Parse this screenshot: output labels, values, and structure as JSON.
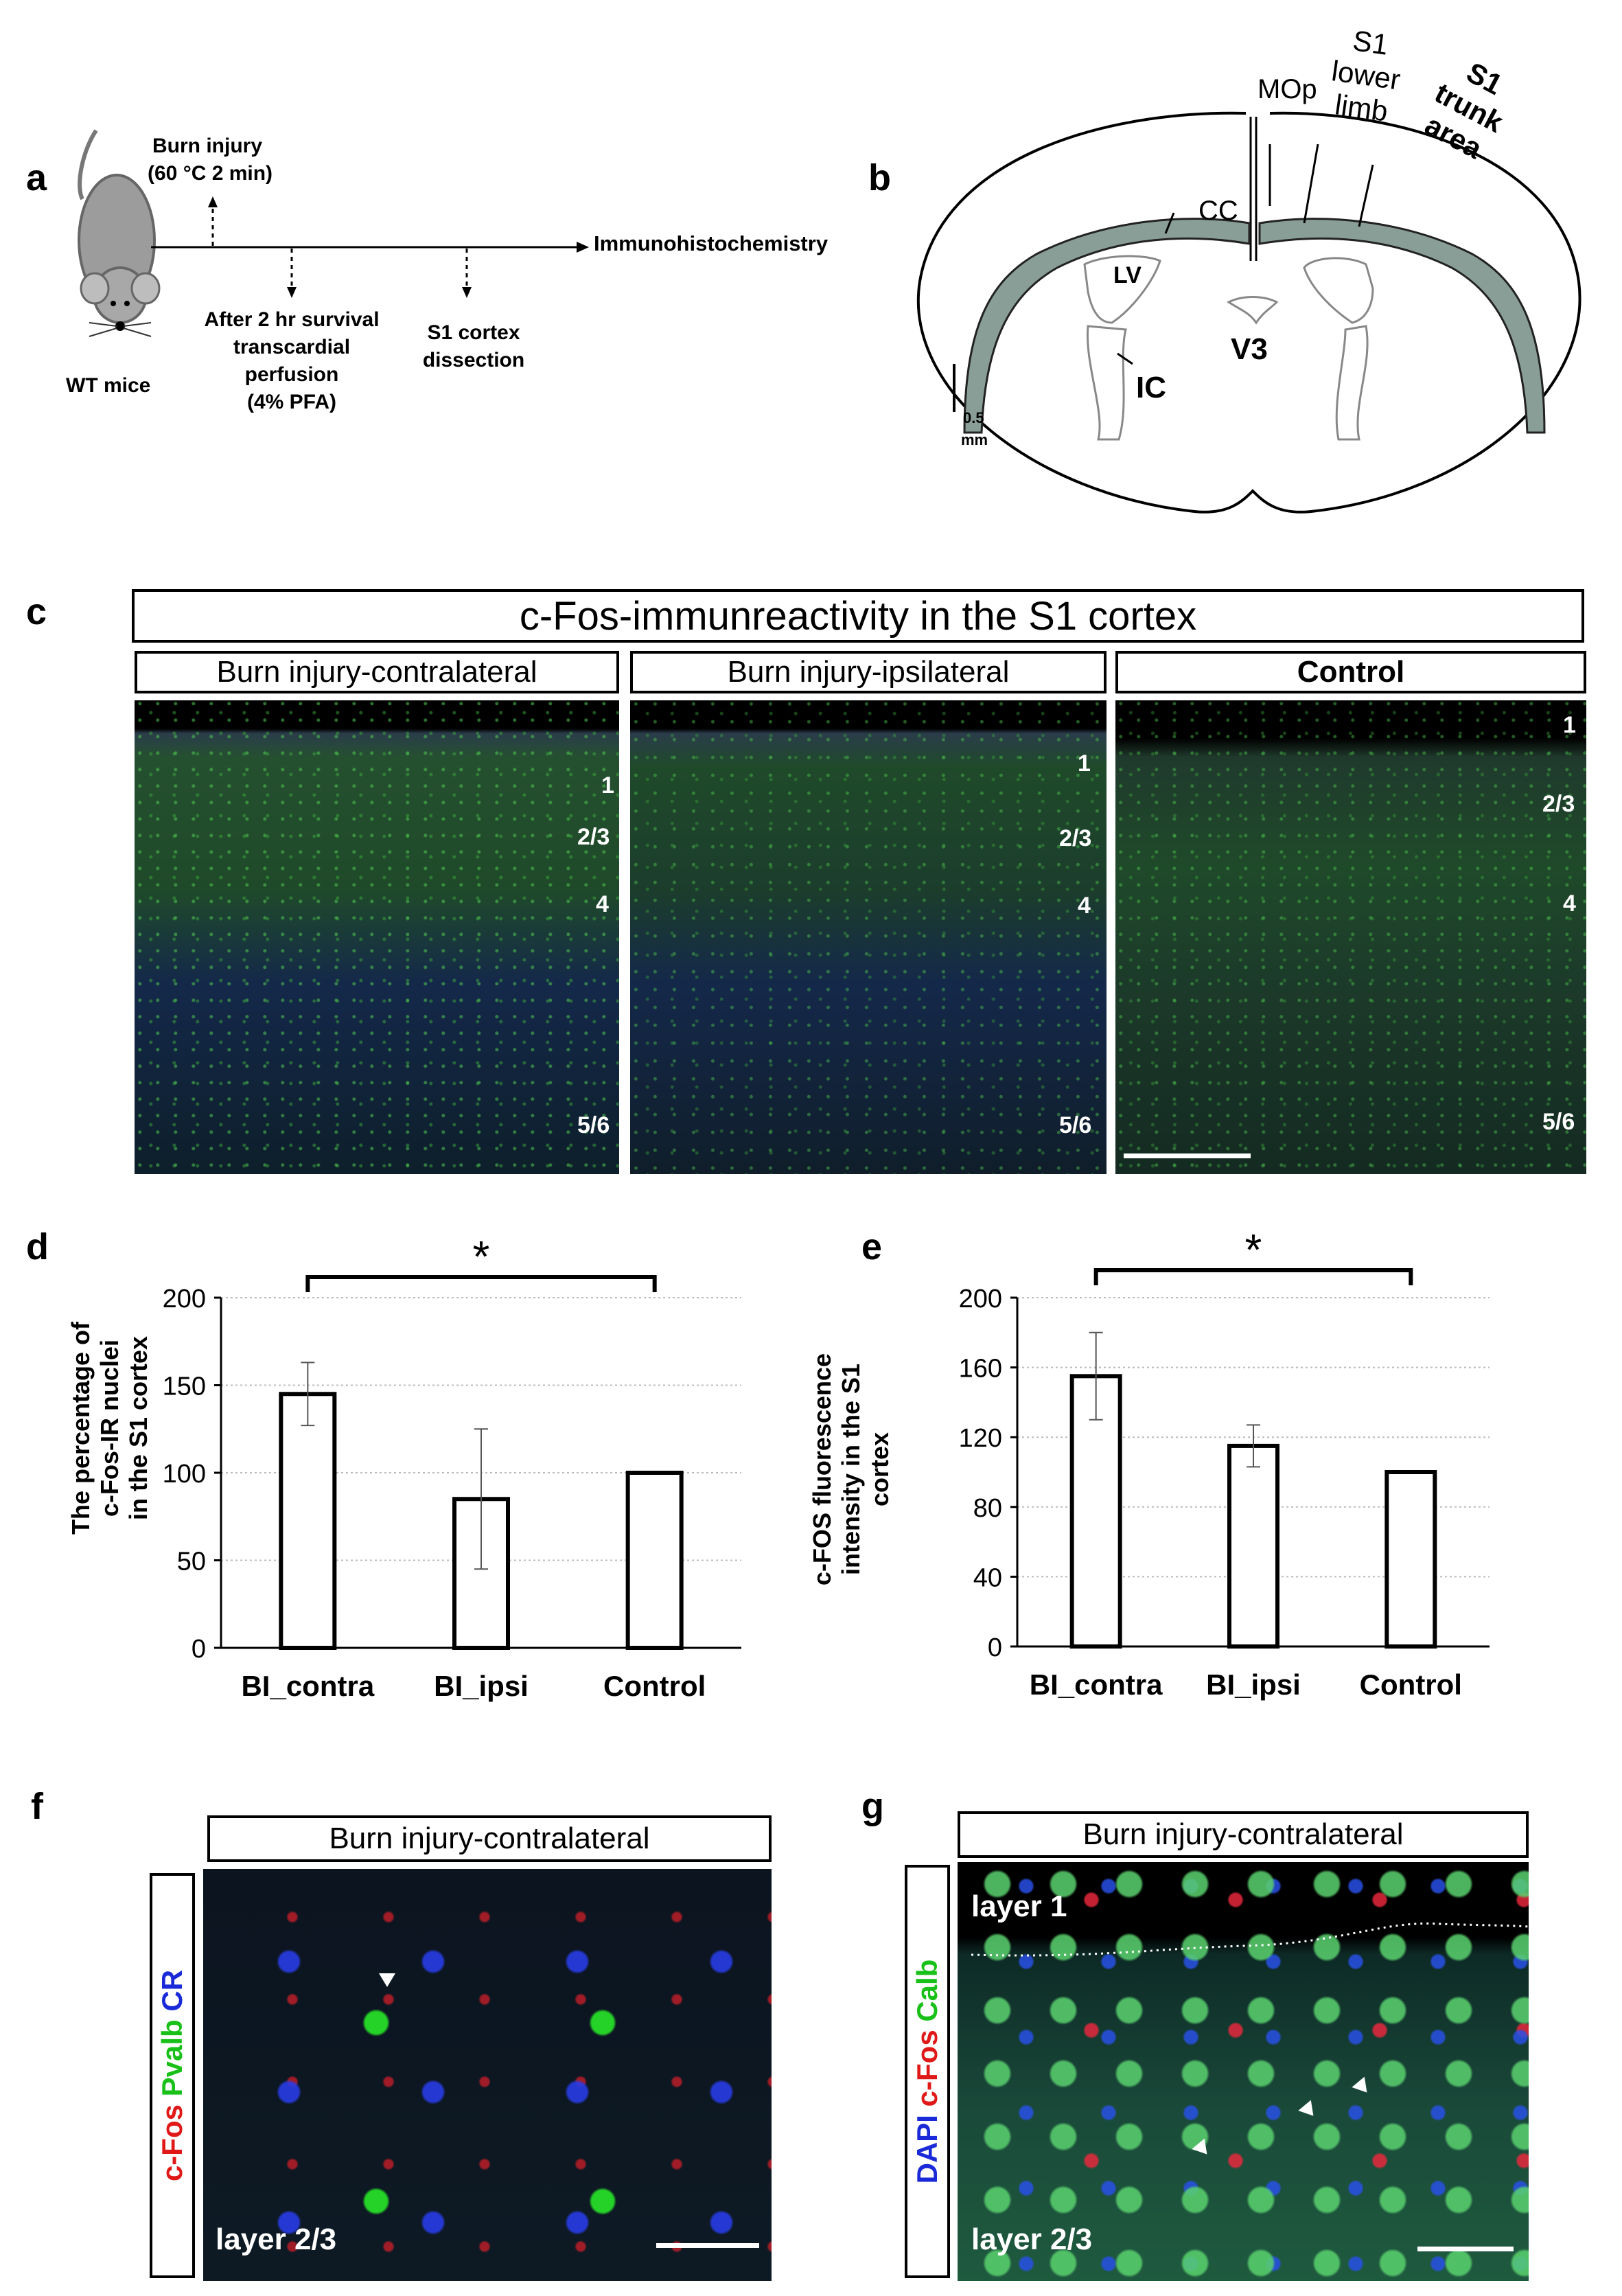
{
  "panels": {
    "a": {
      "label": "a",
      "burn_injury": "Burn injury",
      "burn_params": "(60 °C 2 min)",
      "immuno": "Immunohistochemistry",
      "survival_line1": "After 2 hr survival",
      "survival_line2": "transcardial",
      "survival_line3": "perfusion",
      "survival_line4": "(4% PFA)",
      "dissection_line1": "S1 cortex",
      "dissection_line2": "dissection",
      "mouse_label": "WT mice"
    },
    "b": {
      "label": "b",
      "mop": "MOp",
      "s1_lower_1": "S1",
      "s1_lower_2": "lower",
      "s1_lower_3": "limb",
      "s1_trunk_1": "S1",
      "s1_trunk_2": "trunk",
      "s1_trunk_3": "area",
      "cc": "CC",
      "lv": "LV",
      "v3": "V3",
      "ic": "IC",
      "scale_value": "0.5",
      "scale_unit": "mm"
    },
    "c": {
      "label": "c",
      "title": "c-Fos-immunreactivity in the S1 cortex",
      "col1": "Burn injury-contralateral",
      "col2": "Burn injury-ipsilateral",
      "col3": "Control",
      "layers_col1": [
        "1",
        "2/3",
        "4",
        "5/6"
      ],
      "layers_col2": [
        "1",
        "2/3",
        "4",
        "5/6"
      ],
      "layers_col3": [
        "1",
        "2/3",
        "4",
        "5/6"
      ]
    },
    "d": {
      "label": "d"
    },
    "e": {
      "label": "e"
    },
    "f": {
      "label": "f",
      "title": "Burn injury-contralateral",
      "stain_cfos": "c-Fos",
      "stain_pvalb": "Pvalb",
      "stain_cr": "CR",
      "layer": "layer 2/3"
    },
    "g": {
      "label": "g",
      "title": "Burn injury-contralateral",
      "stain_dapi": "DAPI",
      "stain_cfos": "c-Fos",
      "stain_calb": "Calb",
      "layer_top": "layer 1",
      "layer_bottom": "layer 2/3"
    }
  },
  "chart_data": [
    {
      "type": "bar",
      "panel": "d",
      "categories": [
        "BI_contra",
        "BI_ipsi",
        "Control"
      ],
      "values": [
        145,
        85,
        100
      ],
      "errors": [
        18,
        40,
        0
      ],
      "ylabel": "The percentage of c-Fos-IR nuclei in the S1 cortex",
      "ylabel_lines": [
        "The percentage of",
        "c-Fos-IR nuclei",
        "in the S1 cortex"
      ],
      "ylim": [
        0,
        200
      ],
      "yticks": [
        0,
        50,
        100,
        150,
        200
      ],
      "significance": "*",
      "grid": true
    },
    {
      "type": "bar",
      "panel": "e",
      "categories": [
        "BI_contra",
        "BI_ipsi",
        "Control"
      ],
      "values": [
        155,
        115,
        100
      ],
      "errors": [
        25,
        12,
        0
      ],
      "ylabel": "c-FOS fluorescence intensity in the S1 cortex",
      "ylabel_lines": [
        "c-FOS  fluorescence",
        "intensity in the S1",
        "cortex"
      ],
      "ylim": [
        0,
        200
      ],
      "yticks": [
        0,
        40,
        80,
        120,
        160,
        200
      ],
      "significance": "*",
      "grid": true
    }
  ]
}
